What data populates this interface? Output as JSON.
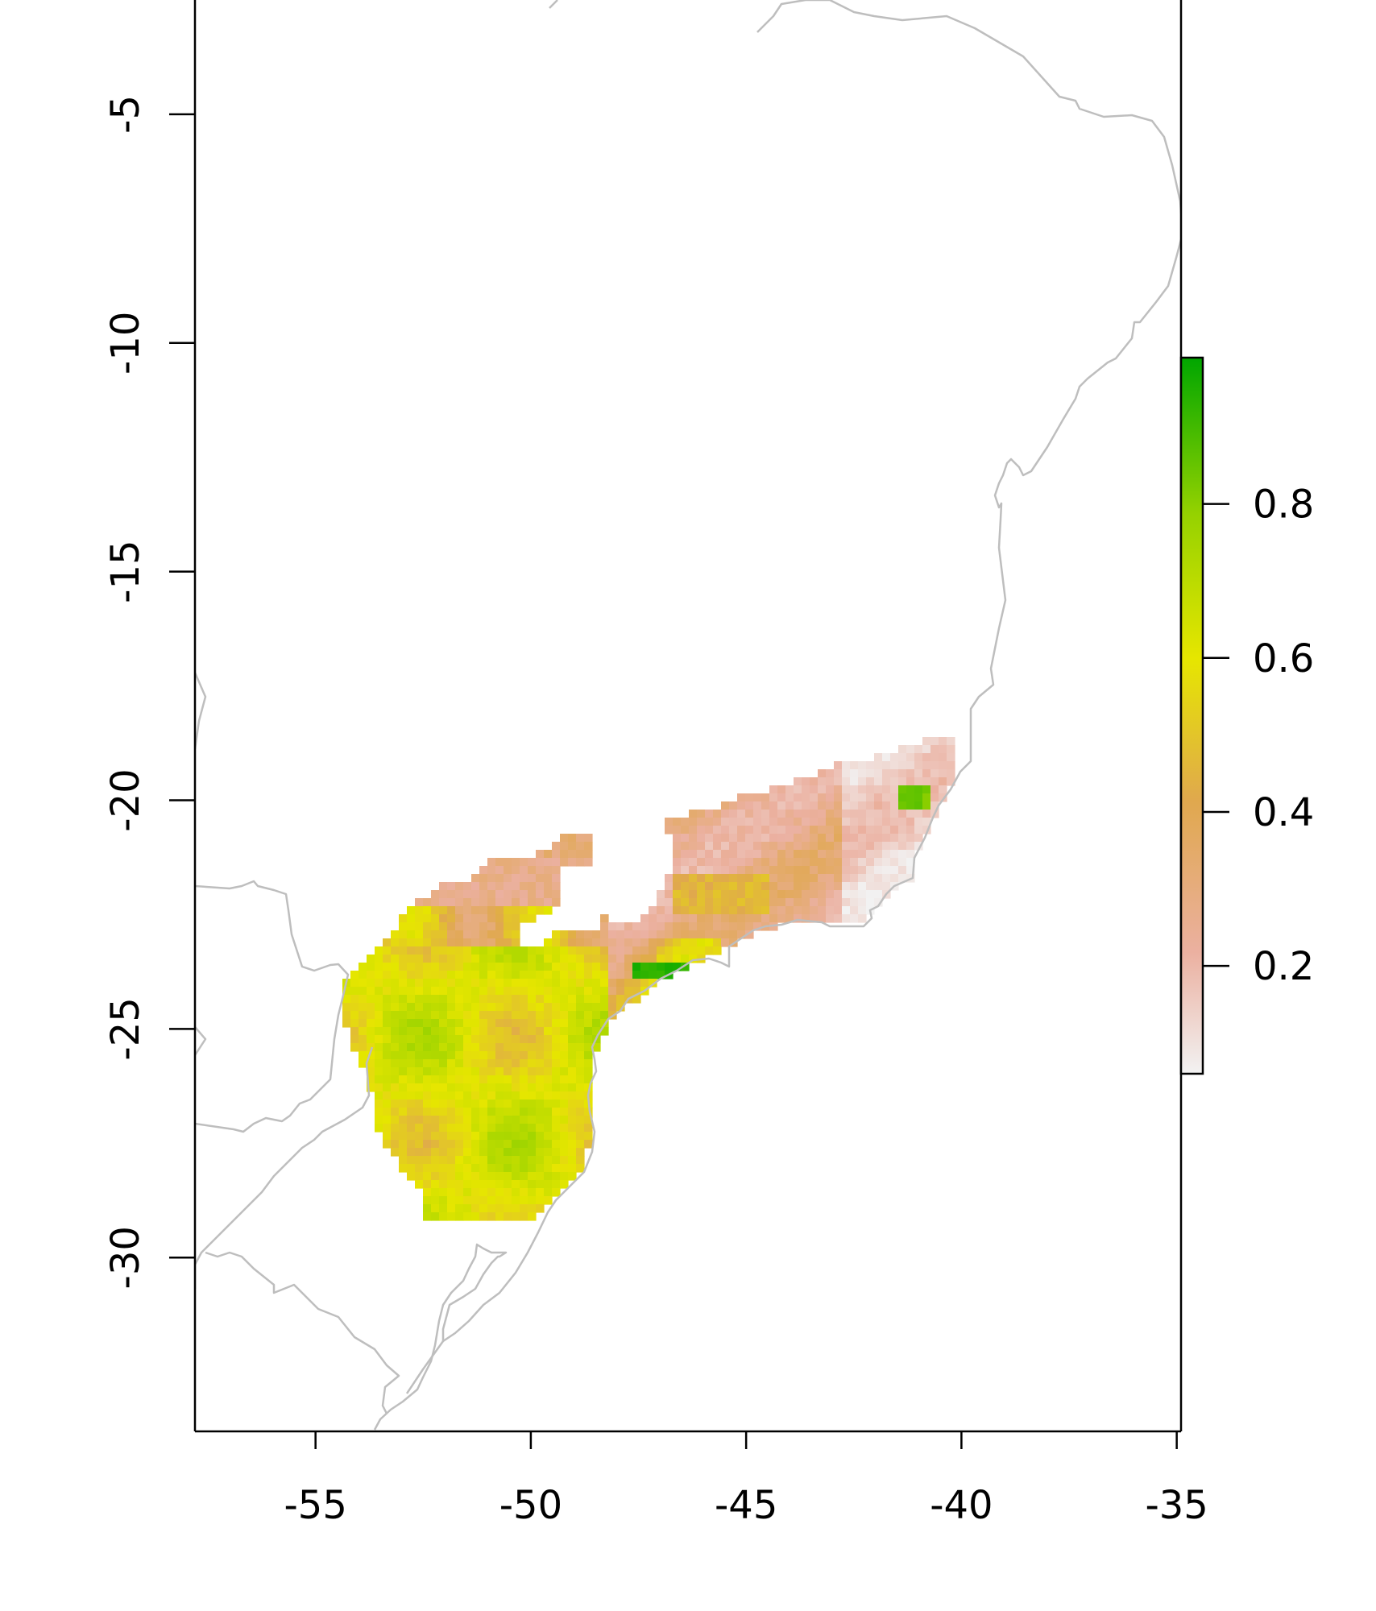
{
  "map": {
    "type": "raster-map",
    "x_axis": {
      "range": [
        -57.8,
        -34.9
      ],
      "ticks": [
        -55,
        -50,
        -45,
        -40,
        -35
      ],
      "tick_labels": [
        "-55",
        "-50",
        "-45",
        "-40",
        "-35"
      ]
    },
    "y_axis": {
      "range": [
        -33.8,
        -2.5
      ],
      "ticks": [
        -5,
        -10,
        -15,
        -20,
        -25,
        -30
      ],
      "tick_labels": [
        "-5",
        "-10",
        "-15",
        "-20",
        "-25",
        "-30"
      ]
    },
    "colors": {
      "coastline": "#bebebe",
      "frame": "#000000"
    },
    "legend": {
      "placement": "right",
      "range": [
        0.06,
        0.99
      ],
      "ticks": [
        0.2,
        0.4,
        0.6,
        0.8
      ],
      "tick_labels": [
        "0.2",
        "0.4",
        "0.6",
        "0.8"
      ],
      "color_ramp": [
        "#f2f2f2",
        "#ebb0a0",
        "#e0a84e",
        "#e6e600",
        "#96d200",
        "#00a600"
      ]
    }
  },
  "chart_data": {
    "type": "heatmap",
    "xlabel": "",
    "ylabel": "",
    "x_range": [
      -57.8,
      -34.9
    ],
    "y_range": [
      -33.8,
      -2.5
    ],
    "value_range": [
      0.06,
      0.99
    ],
    "regions": [
      {
        "lon": [
          -54.2,
          -48.6
        ],
        "lat": [
          -29.7,
          -23.8
        ],
        "value_approx": 0.6
      },
      {
        "lon": [
          -53.5,
          -51.8
        ],
        "lat": [
          -23.8,
          -22.5
        ],
        "value_approx": 0.35
      },
      {
        "lon": [
          -52.0,
          -48.7
        ],
        "lat": [
          -22.8,
          -21.5
        ],
        "value_approx": 0.22
      },
      {
        "lon": [
          -48.7,
          -44.7
        ],
        "lat": [
          -24.6,
          -22.6
        ],
        "value_approx": 0.45
      },
      {
        "lon": [
          -47.0,
          -45.3
        ],
        "lat": [
          -24.1,
          -23.6
        ],
        "value_approx": 0.85
      },
      {
        "lon": [
          -48.0,
          -40.2
        ],
        "lat": [
          -23.0,
          -19.9
        ],
        "value_approx": 0.25
      },
      {
        "lon": [
          -42.5,
          -40.2
        ],
        "lat": [
          -21.5,
          -19.2
        ],
        "value_approx": 0.1
      },
      {
        "lon": [
          -41.2,
          -40.4
        ],
        "lat": [
          -20.6,
          -19.9
        ],
        "value_approx": 0.75
      }
    ]
  }
}
